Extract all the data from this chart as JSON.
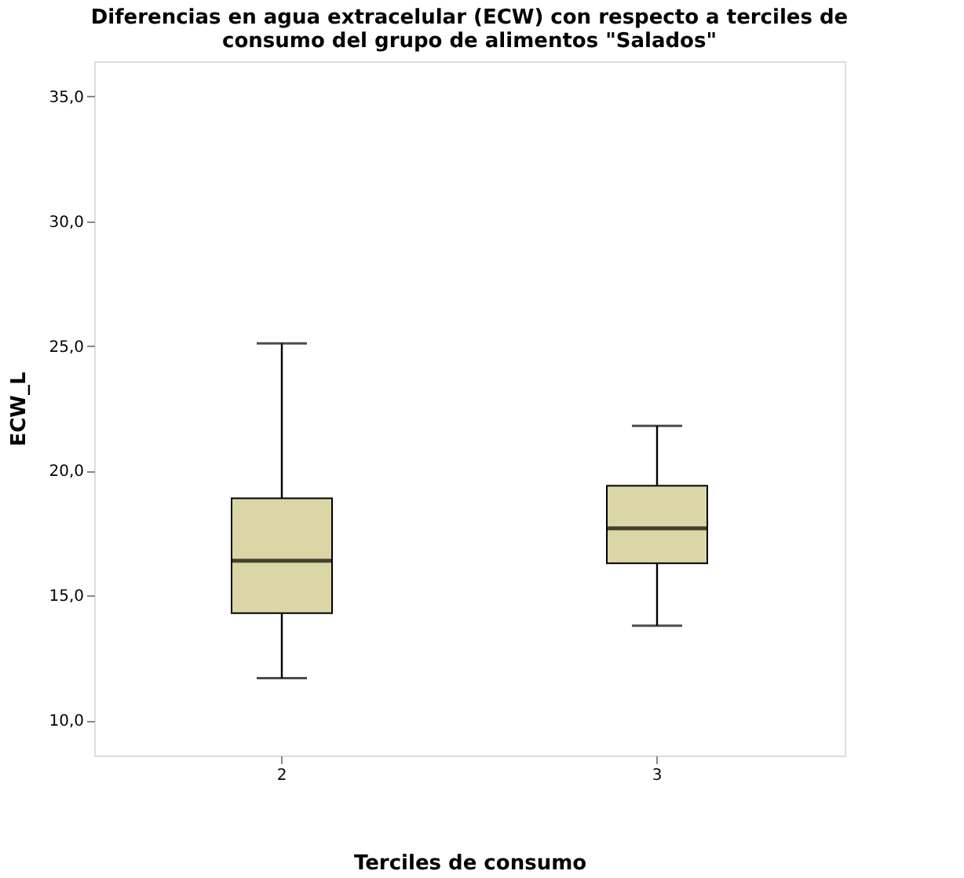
{
  "chart_data": {
    "type": "box",
    "title": "Diferencias en agua extracelular (ECW) con respecto a terciles de\nconsumo del grupo de alimentos \"Salados\"",
    "xlabel": "Terciles de consumo",
    "ylabel": "ECW_L",
    "categories": [
      "2",
      "3"
    ],
    "color": "#dbd6a6",
    "boxes": [
      {
        "low": 11.7,
        "q1": 14.3,
        "median": 16.4,
        "q3": 18.9,
        "high": 25.1
      },
      {
        "low": 13.8,
        "q1": 16.3,
        "median": 17.7,
        "q3": 19.4,
        "high": 21.8
      }
    ],
    "ylim": [
      8.6,
      36.4
    ],
    "yticks": [
      {
        "value": 10,
        "label": "10,0"
      },
      {
        "value": 15,
        "label": "15,0"
      },
      {
        "value": 20,
        "label": "20,0"
      },
      {
        "value": 25,
        "label": "25,0"
      },
      {
        "value": 30,
        "label": "30,0"
      },
      {
        "value": 35,
        "label": "35,0"
      }
    ],
    "grid": false
  }
}
